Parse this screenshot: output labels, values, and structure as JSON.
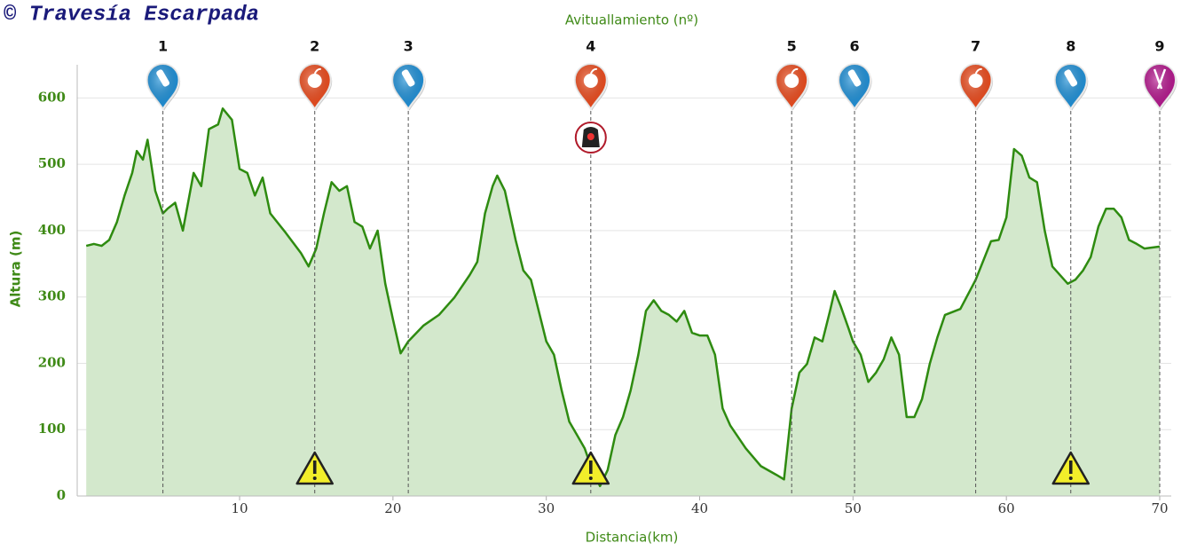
{
  "chart_data": {
    "type": "area",
    "watermark": "© Travesía Escarpada",
    "title": "Avituallamiento (nº)",
    "x_label": "Distancia(km)",
    "y_label": "Altura (m)",
    "xlim": [
      0,
      70
    ],
    "xticks": [
      10,
      20,
      30,
      40,
      50,
      60,
      70
    ],
    "ylim": [
      0,
      650
    ],
    "yticks": [
      0,
      100,
      200,
      300,
      400,
      500,
      600
    ],
    "grid": true,
    "color": "#2e8b10",
    "fill": "#d3e8cc",
    "x": [
      0,
      0.5,
      1,
      1.5,
      2,
      2.5,
      3,
      3.3,
      3.7,
      4,
      4.5,
      5,
      5.3,
      5.8,
      6.3,
      7,
      7.5,
      8,
      8.6,
      8.9,
      9.5,
      10,
      10.5,
      11,
      11.5,
      12,
      13,
      14,
      14.5,
      15,
      15.5,
      16,
      16.5,
      17,
      17.5,
      18,
      18.5,
      19,
      19.5,
      20,
      20.5,
      21,
      22,
      23,
      24,
      25,
      25.5,
      26,
      26.5,
      26.8,
      27.3,
      28,
      28.5,
      29,
      30,
      30.5,
      31,
      31.5,
      32,
      32.5,
      33,
      33.5,
      34,
      34.5,
      35,
      35.5,
      36,
      36.5,
      37,
      37.5,
      38,
      38.5,
      39,
      39.5,
      40,
      40.5,
      41,
      41.5,
      42,
      43,
      44,
      45,
      45.5,
      46,
      46.5,
      47,
      47.5,
      48,
      48.5,
      48.8,
      49.2,
      49.7,
      50,
      50.5,
      51,
      51.5,
      52,
      52.5,
      53,
      53.5,
      54,
      54.5,
      55,
      55.5,
      56,
      57,
      58,
      59,
      59.5,
      60,
      60.5,
      61,
      61.5,
      62,
      62.5,
      63,
      64,
      64.5,
      65,
      65.5,
      66,
      66.5,
      67,
      67.5,
      68,
      68.5,
      69,
      70
    ],
    "values": [
      377,
      380,
      377,
      386,
      413,
      453,
      487,
      520,
      507,
      537,
      460,
      426,
      433,
      442,
      400,
      487,
      467,
      553,
      560,
      584,
      567,
      493,
      487,
      453,
      480,
      426,
      397,
      366,
      346,
      373,
      426,
      473,
      460,
      467,
      413,
      406,
      373,
      400,
      320,
      266,
      215,
      233,
      257,
      273,
      299,
      333,
      353,
      426,
      467,
      483,
      460,
      386,
      340,
      326,
      233,
      213,
      159,
      112,
      92,
      72,
      39,
      15,
      39,
      92,
      119,
      159,
      213,
      279,
      295,
      279,
      273,
      263,
      279,
      246,
      242,
      242,
      213,
      132,
      106,
      72,
      45,
      32,
      25,
      132,
      186,
      199,
      239,
      233,
      279,
      309,
      286,
      253,
      233,
      213,
      172,
      186,
      206,
      239,
      213,
      119,
      119,
      146,
      199,
      239,
      273,
      282,
      326,
      384,
      386,
      420,
      523,
      513,
      480,
      473,
      400,
      346,
      320,
      326,
      340,
      360,
      406,
      433,
      433,
      420,
      386,
      380,
      373,
      376
    ],
    "kind_colors": {
      "water": "#1e8fd6",
      "food": "#ea4a1c",
      "meal": "#b3168c"
    },
    "aid_stations": [
      {
        "label": "1",
        "km": 5,
        "kind": "water"
      },
      {
        "label": "2",
        "km": 14.9,
        "kind": "food"
      },
      {
        "label": "3",
        "km": 21,
        "kind": "water"
      },
      {
        "label": "4",
        "km": 32.9,
        "kind": "food"
      },
      {
        "label": "5",
        "km": 46,
        "kind": "food"
      },
      {
        "label": "6",
        "km": 50.1,
        "kind": "water"
      },
      {
        "label": "7",
        "km": 58,
        "kind": "food"
      },
      {
        "label": "8",
        "km": 64.2,
        "kind": "water"
      },
      {
        "label": "9",
        "km": 70,
        "kind": "meal"
      }
    ],
    "warnings": [
      14.9,
      32.9,
      64.2
    ],
    "medical": [
      32.9
    ]
  }
}
